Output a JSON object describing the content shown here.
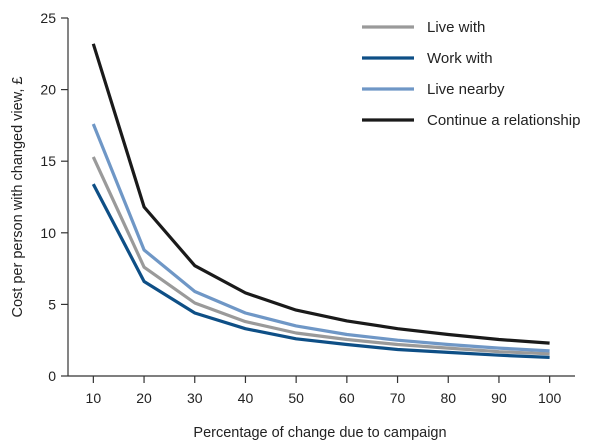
{
  "chart_data": {
    "type": "line",
    "title": "",
    "xlabel": "Percentage of change due to campaign",
    "ylabel": "Cost per person with changed view, £",
    "x": [
      10,
      20,
      30,
      40,
      50,
      60,
      70,
      80,
      90,
      100
    ],
    "xlim": [
      5,
      105
    ],
    "ylim": [
      0,
      25
    ],
    "xticks": [
      10,
      20,
      30,
      40,
      50,
      60,
      70,
      80,
      90,
      100
    ],
    "yticks": [
      0,
      5,
      10,
      15,
      20,
      25
    ],
    "grid": false,
    "legend_position": "top-right",
    "series": [
      {
        "name": "Live with",
        "color": "#9a9a9a",
        "values": [
          15.3,
          7.6,
          5.1,
          3.8,
          3.0,
          2.55,
          2.2,
          1.95,
          1.7,
          1.55
        ]
      },
      {
        "name": "Work with",
        "color": "#0e4f86",
        "values": [
          13.4,
          6.6,
          4.4,
          3.3,
          2.6,
          2.2,
          1.85,
          1.65,
          1.45,
          1.3
        ]
      },
      {
        "name": "Live nearby",
        "color": "#6f97c6",
        "values": [
          17.6,
          8.8,
          5.9,
          4.4,
          3.5,
          2.9,
          2.5,
          2.2,
          1.95,
          1.75
        ]
      },
      {
        "name": "Continue a relationship",
        "color": "#1a1a1a",
        "values": [
          23.2,
          11.8,
          7.7,
          5.8,
          4.6,
          3.85,
          3.3,
          2.9,
          2.55,
          2.3
        ]
      }
    ]
  }
}
